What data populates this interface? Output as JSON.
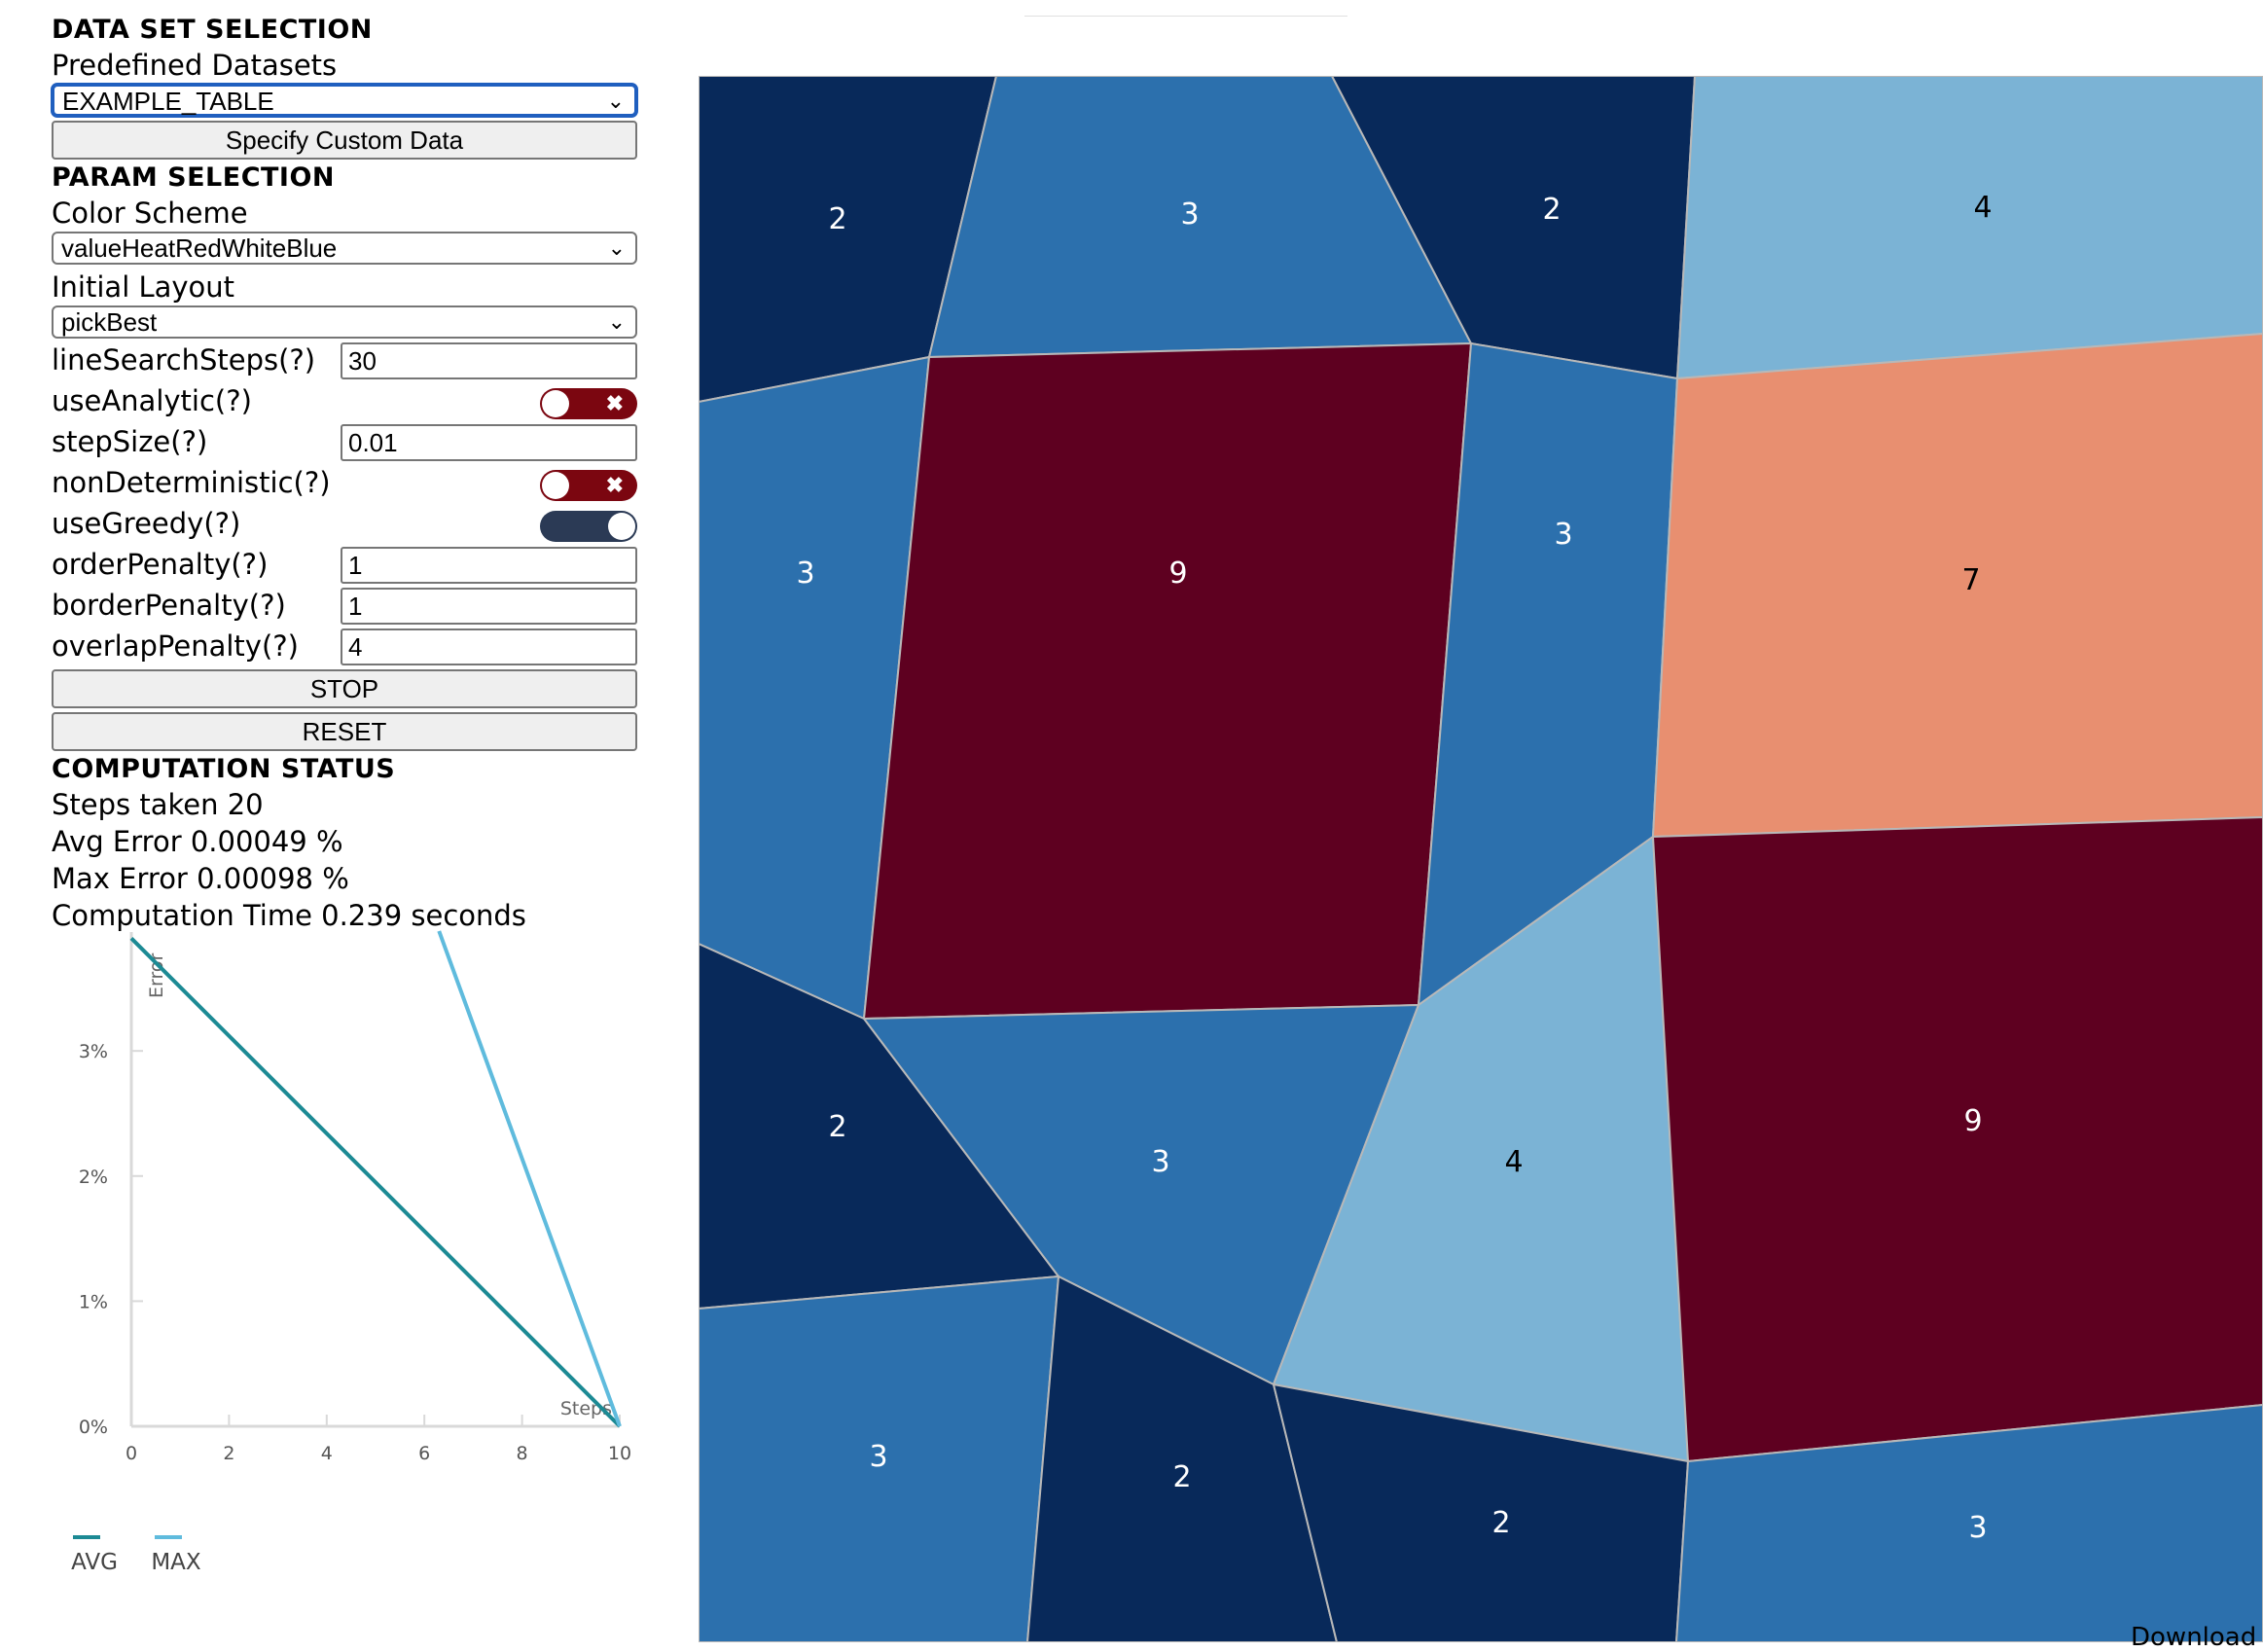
{
  "dataset": {
    "section_title": "DATA SET SELECTION",
    "predefined_label": "Predefined Datasets",
    "predefined_value": "EXAMPLE_TABLE",
    "custom_button": "Specify Custom Data"
  },
  "params": {
    "section_title": "PARAM SELECTION",
    "color_scheme_label": "Color Scheme",
    "color_scheme_value": "valueHeatRedWhiteBlue",
    "initial_layout_label": "Initial Layout",
    "initial_layout_value": "pickBest",
    "line_search_label": "lineSearchSteps(?)",
    "line_search_value": "30",
    "use_analytic_label": "useAnalytic(?)",
    "use_analytic_on": false,
    "step_size_label": "stepSize(?)",
    "step_size_value": "0.01",
    "non_deterministic_label": "nonDeterministic(?)",
    "non_deterministic_on": false,
    "use_greedy_label": "useGreedy(?)",
    "use_greedy_on": true,
    "order_penalty_label": "orderPenalty(?)",
    "order_penalty_value": "1",
    "border_penalty_label": "borderPenalty(?)",
    "border_penalty_value": "1",
    "overlap_penalty_label": "overlapPenalty(?)",
    "overlap_penalty_value": "4",
    "toggle_off_glyph": "✖",
    "stop_button": "STOP",
    "reset_button": "RESET"
  },
  "status": {
    "section_title": "COMPUTATION STATUS",
    "steps": "Steps taken 20",
    "avg_error": "Avg Error 0.00049 %",
    "max_error": "Max Error 0.00098 %",
    "time": "Computation Time 0.239 seconds"
  },
  "colors": {
    "navy": "#08295a",
    "mid_blue": "#2c70ad",
    "light_blue": "#7bb3d5",
    "salmon": "#e88f70",
    "dark_red": "#5e0020",
    "avg_line": "#1c8a94",
    "max_line": "#5fbbdd"
  },
  "chart_data": {
    "type": "line",
    "xlabel": "Steps",
    "ylabel": "Error",
    "xlim": [
      0,
      10
    ],
    "ylim": [
      0,
      0.0395
    ],
    "x_ticks": [
      "0",
      "2",
      "4",
      "6",
      "8",
      "10"
    ],
    "y_ticks": [
      "0%",
      "1%",
      "2%",
      "3%"
    ],
    "series": [
      {
        "name": "AVG",
        "x": [
          0,
          10
        ],
        "y": [
          0.039,
          0.0
        ]
      },
      {
        "name": "MAX",
        "x": [
          6.3,
          10
        ],
        "y": [
          0.0415,
          0.0
        ]
      }
    ],
    "legend": [
      "AVG",
      "MAX"
    ]
  },
  "map_cells": [
    "2",
    "3",
    "2",
    "4",
    "3",
    "9",
    "3",
    "7",
    "2",
    "3",
    "4",
    "9",
    "3",
    "2",
    "2",
    "3"
  ],
  "download_label": "Download"
}
